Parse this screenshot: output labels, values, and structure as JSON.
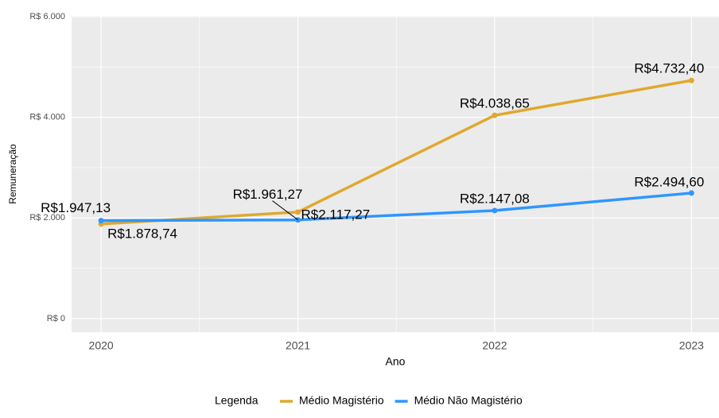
{
  "chart_data": {
    "type": "line",
    "x": [
      2020,
      2021,
      2022,
      2023
    ],
    "series": [
      {
        "name": "Médio Magistério",
        "color": "#e0a82e",
        "values": [
          1878.74,
          2117.27,
          4038.65,
          4732.4
        ],
        "value_labels": [
          "R$1.878,74",
          "R$2.117,27",
          "R$4.038,65",
          "R$4.732,40"
        ]
      },
      {
        "name": "Médio Não Magistério",
        "color": "#2e96ff",
        "values": [
          1947.13,
          1961.27,
          2147.08,
          2494.6
        ],
        "value_labels": [
          "R$1.947,13",
          "R$1.961,27",
          "R$2.147,08",
          "R$2.494,60"
        ]
      }
    ],
    "xlabel": "Ano",
    "ylabel": "Remuneração",
    "legend_title": "Legenda",
    "xlim": [
      2019.85,
      2023.14
    ],
    "xticks": [
      2020,
      2021,
      2022,
      2023
    ],
    "ylim": [
      -270,
      6015
    ],
    "yticks": [
      {
        "value": 0,
        "label": "R$ 0"
      },
      {
        "value": 2000,
        "label": "R$ 2.000"
      },
      {
        "value": 4000,
        "label": "R$ 4.000"
      },
      {
        "value": 6000,
        "label": "R$ 6.000"
      }
    ],
    "grid": true,
    "legend": "bottom"
  }
}
